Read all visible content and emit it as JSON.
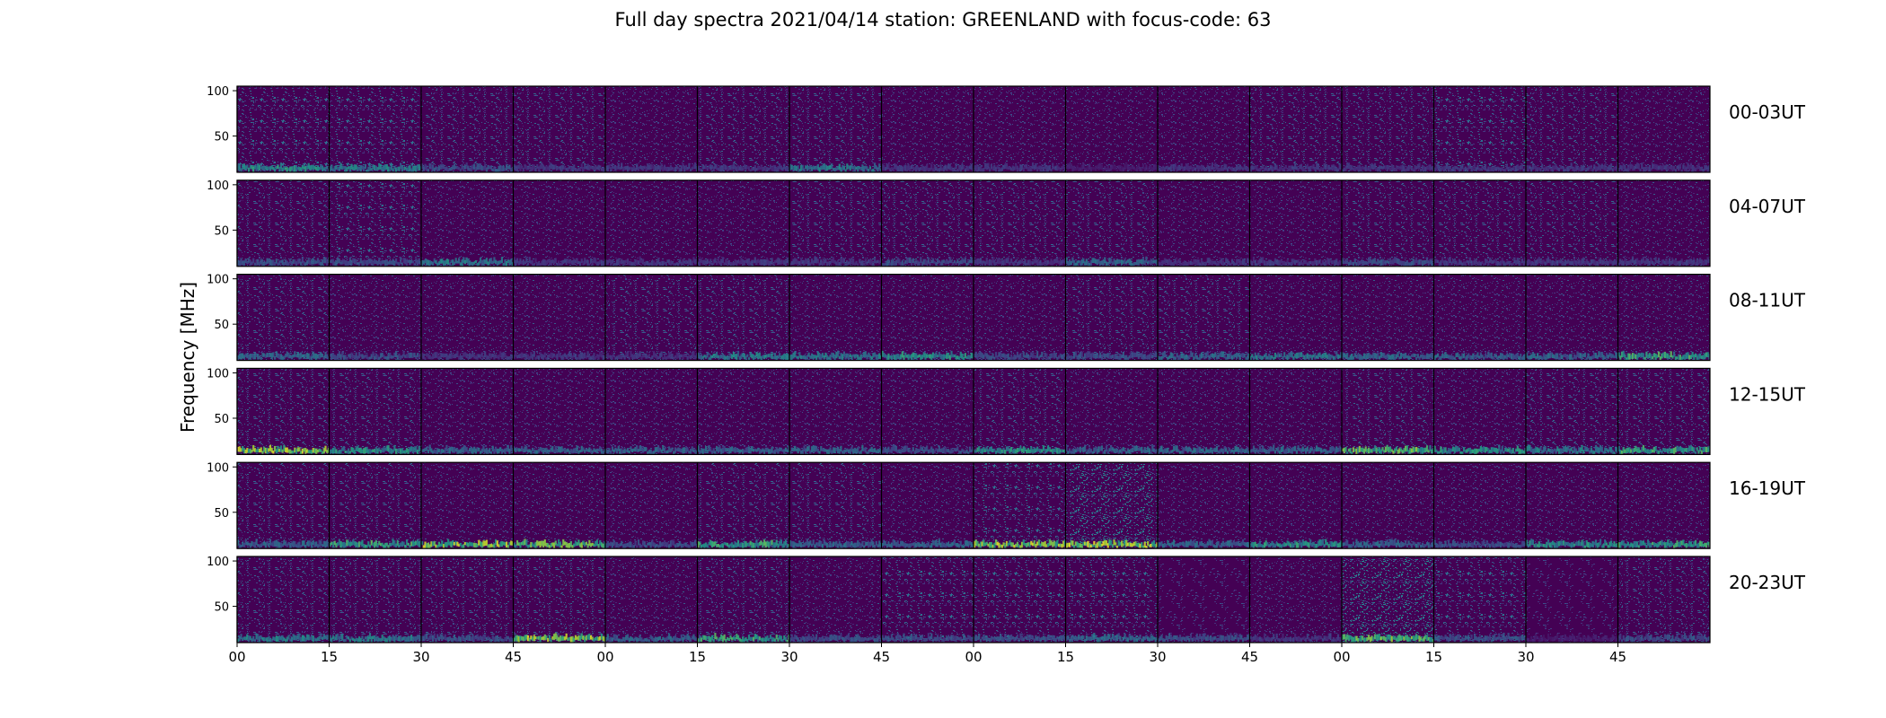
{
  "title": "Full day spectra 2021/04/14 station: GREENLAND with focus-code: 63",
  "colors": {
    "background": "#440154",
    "low": "#46327e",
    "mid": "#21918c",
    "high": "#fde725"
  },
  "chart_data": {
    "type": "heatmap",
    "colormap": "viridis",
    "title": "Full day spectra 2021/04/14 station: GREENLAND with focus-code: 63",
    "ylabel": "Frequency [MHz]",
    "xlabel": "",
    "yticks": [
      50,
      100
    ],
    "ylim": [
      10,
      105
    ],
    "xtick_labels": [
      "00",
      "15",
      "30",
      "45",
      "00",
      "15",
      "30",
      "45",
      "00",
      "15",
      "30",
      "45",
      "00",
      "15",
      "30",
      "45"
    ],
    "panels_per_row": 16,
    "rows": [
      {
        "label": "00-03UT",
        "intensity": [
          0.5,
          0.5,
          0.4,
          0.3,
          0.2,
          0.3,
          0.4,
          0.2,
          0.2,
          0.2,
          0.2,
          0.3,
          0.4,
          0.5,
          0.3,
          0.2
        ],
        "low_band": [
          0.6,
          0.5,
          0.3,
          0.2,
          0.2,
          0.2,
          0.5,
          0.2,
          0.2,
          0.1,
          0.2,
          0.2,
          0.2,
          0.2,
          0.2,
          0.2
        ]
      },
      {
        "label": "04-07UT",
        "intensity": [
          0.3,
          0.5,
          0.2,
          0.2,
          0.2,
          0.2,
          0.3,
          0.4,
          0.4,
          0.3,
          0.2,
          0.2,
          0.3,
          0.3,
          0.3,
          0.2
        ],
        "low_band": [
          0.3,
          0.3,
          0.5,
          0.2,
          0.2,
          0.2,
          0.2,
          0.3,
          0.2,
          0.4,
          0.2,
          0.2,
          0.3,
          0.2,
          0.2,
          0.2
        ]
      },
      {
        "label": "08-11UT",
        "intensity": [
          0.3,
          0.2,
          0.2,
          0.2,
          0.4,
          0.3,
          0.2,
          0.2,
          0.2,
          0.3,
          0.3,
          0.2,
          0.2,
          0.2,
          0.2,
          0.2
        ],
        "low_band": [
          0.4,
          0.3,
          0.2,
          0.2,
          0.2,
          0.5,
          0.5,
          0.6,
          0.3,
          0.3,
          0.4,
          0.5,
          0.4,
          0.4,
          0.4,
          0.7
        ]
      },
      {
        "label": "12-15UT",
        "intensity": [
          0.4,
          0.3,
          0.2,
          0.2,
          0.2,
          0.2,
          0.2,
          0.2,
          0.3,
          0.2,
          0.2,
          0.2,
          0.3,
          0.2,
          0.3,
          0.3
        ],
        "low_band": [
          0.9,
          0.6,
          0.4,
          0.4,
          0.4,
          0.4,
          0.4,
          0.3,
          0.6,
          0.4,
          0.4,
          0.4,
          0.8,
          0.6,
          0.5,
          0.7
        ]
      },
      {
        "label": "16-19UT",
        "intensity": [
          0.3,
          0.3,
          0.2,
          0.2,
          0.2,
          0.3,
          0.3,
          0.2,
          0.5,
          0.8,
          0.2,
          0.2,
          0.2,
          0.2,
          0.2,
          0.2
        ],
        "low_band": [
          0.4,
          0.7,
          0.9,
          0.8,
          0.3,
          0.7,
          0.4,
          0.4,
          0.9,
          1.0,
          0.4,
          0.6,
          0.4,
          0.3,
          0.6,
          0.7
        ]
      },
      {
        "label": "20-23UT",
        "intensity": [
          0.3,
          0.3,
          0.3,
          0.3,
          0.2,
          0.3,
          0.2,
          0.5,
          0.5,
          0.5,
          0.1,
          0.2,
          0.8,
          0.5,
          0.05,
          0.4
        ],
        "low_band": [
          0.5,
          0.5,
          0.3,
          0.9,
          0.4,
          0.7,
          0.3,
          0.3,
          0.3,
          0.4,
          0.3,
          0.2,
          0.8,
          0.3,
          0.1,
          0.3
        ]
      }
    ]
  }
}
